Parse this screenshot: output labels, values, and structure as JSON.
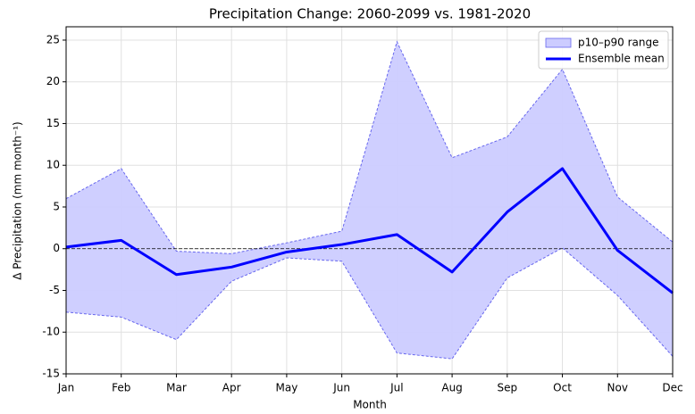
{
  "chart_data": {
    "type": "line",
    "title": "Precipitation Change: 2060-2099 vs. 1981-2020",
    "xlabel": "Month",
    "ylabel": "Δ Precipitation (mm month⁻¹)",
    "categories": [
      "Jan",
      "Feb",
      "Mar",
      "Apr",
      "May",
      "Jun",
      "Jul",
      "Aug",
      "Sep",
      "Oct",
      "Nov",
      "Dec"
    ],
    "band": {
      "name": "p10–p90 range",
      "color": "#ccccff",
      "edge_color": "#6666ee",
      "upper": [
        6.0,
        9.6,
        -0.3,
        -0.6,
        0.7,
        2.1,
        24.8,
        10.9,
        13.4,
        21.5,
        6.2,
        0.8
      ],
      "lower": [
        -7.6,
        -8.2,
        -10.9,
        -3.9,
        -1.1,
        -1.5,
        -12.5,
        -13.2,
        -3.5,
        0.1,
        -5.6,
        -12.9
      ]
    },
    "series": [
      {
        "name": "Ensemble mean",
        "color": "#0000ff",
        "values": [
          0.2,
          1.0,
          -3.1,
          -2.2,
          -0.4,
          0.5,
          1.7,
          -2.8,
          4.4,
          9.6,
          -0.2,
          -5.3
        ]
      }
    ],
    "reference_line": 0,
    "ylim": [
      -15,
      26.6
    ],
    "yticks": [
      -15,
      -10,
      -5,
      0,
      5,
      10,
      15,
      20,
      25
    ],
    "grid": true,
    "legend": "upper right"
  }
}
